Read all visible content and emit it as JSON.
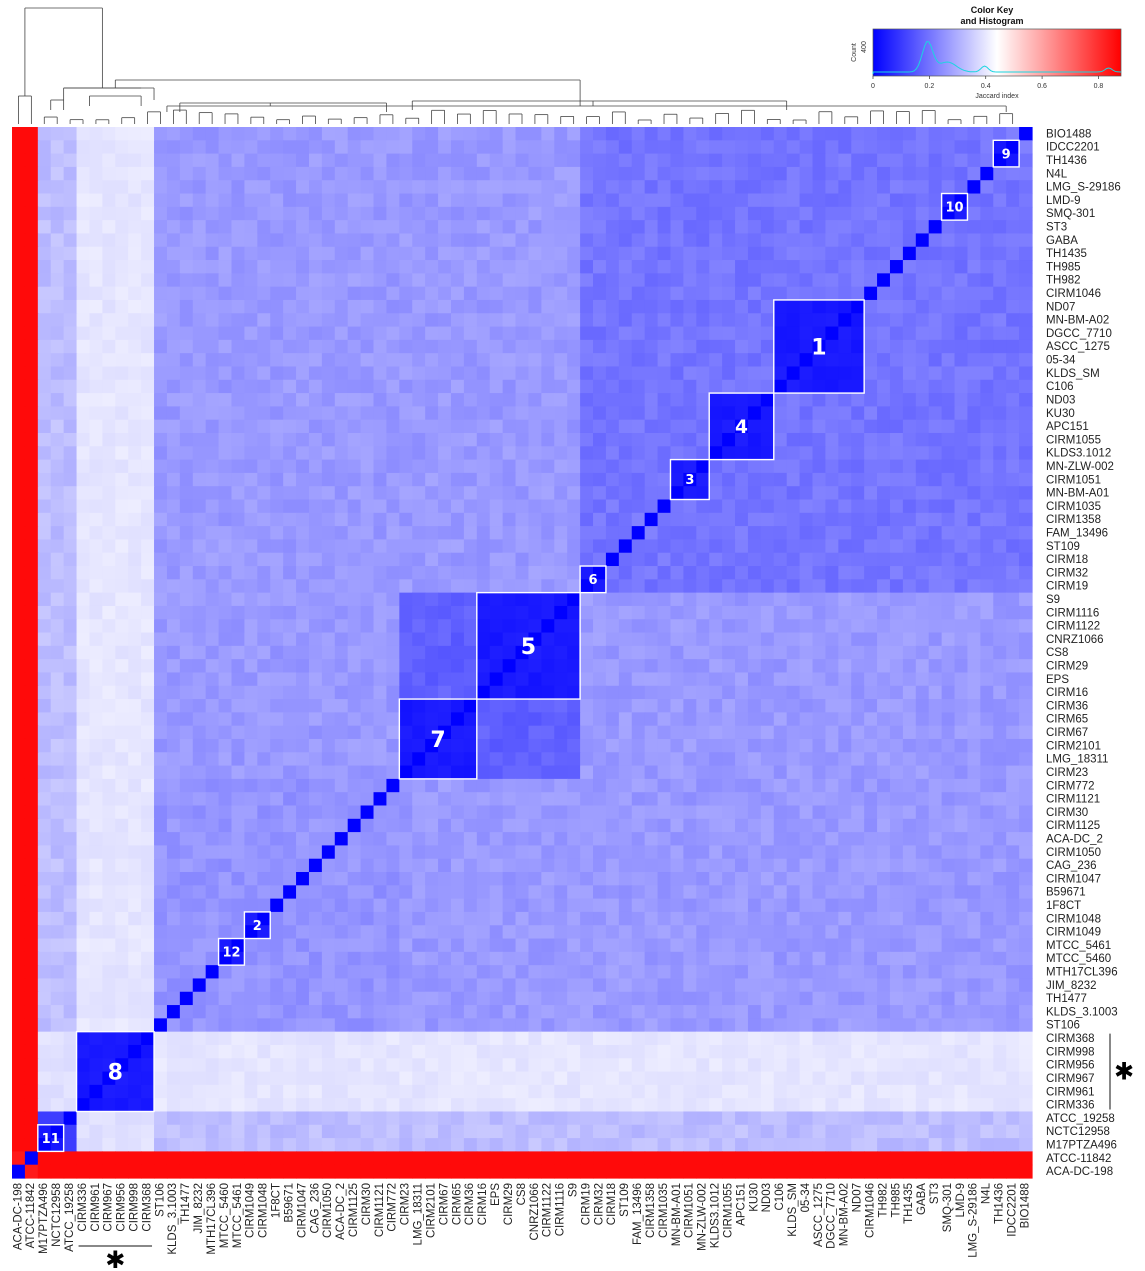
{
  "chart_data": {
    "type": "heatmap",
    "metric": "Jaccard index",
    "color_key": {
      "title": "Color Key\nand Histogram",
      "xlabel": "Jaccard index",
      "ylabel": "Count",
      "ticks": [
        "0",
        "0.2",
        "0.4",
        "0.6",
        "0.8"
      ],
      "ytick": "400",
      "color_low": "#0000ff",
      "color_mid": "#ffffff",
      "color_high": "#ff0000"
    },
    "row_labels": [
      "BIO1488",
      "IDCC2201",
      "TH1436",
      "N4L",
      "LMG_S-29186",
      "LMD-9",
      "SMQ-301",
      "ST3",
      "GABA",
      "TH1435",
      "TH985",
      "TH982",
      "CIRM1046",
      "ND07",
      "MN-BM-A02",
      "DGCC_7710",
      "ASCC_1275",
      "05-34",
      "KLDS_SM",
      "C106",
      "ND03",
      "KU30",
      "APC151",
      "CIRM1055",
      "KLDS3.1012",
      "MN-ZLW-002",
      "CIRM1051",
      "MN-BM-A01",
      "CIRM1035",
      "CIRM1358",
      "FAM_13496",
      "ST109",
      "CIRM18",
      "CIRM32",
      "CIRM19",
      "S9",
      "CIRM1116",
      "CIRM1122",
      "CNRZ1066",
      "CS8",
      "CIRM29",
      "EPS",
      "CIRM16",
      "CIRM36",
      "CIRM65",
      "CIRM67",
      "CIRM2101",
      "LMG_18311",
      "CIRM23",
      "CIRM772",
      "CIRM1121",
      "CIRM30",
      "CIRM1125",
      "ACA-DC_2",
      "CIRM1050",
      "CAG_236",
      "CIRM1047",
      "B59671",
      "1F8CT",
      "CIRM1048",
      "CIRM1049",
      "MTCC_5461",
      "MTCC_5460",
      "MTH17CL396",
      "JIM_8232",
      "TH1477",
      "KLDS_3.1003",
      "ST106",
      "CIRM368",
      "CIRM998",
      "CIRM956",
      "CIRM967",
      "CIRM961",
      "CIRM336",
      "ATCC_19258",
      "NCTC12958",
      "M17PTZA496",
      "ATCC-11842",
      "ACA-DC-198"
    ],
    "col_labels": [
      "ACA-DC-198",
      "ATCC-11842",
      "M17PTZA496",
      "NCTC12958",
      "ATCC_19258",
      "CIRM336",
      "CIRM961",
      "CIRM967",
      "CIRM956",
      "CIRM998",
      "CIRM368",
      "ST106",
      "KLDS_3.1003",
      "TH1477",
      "JIM_8232",
      "MTH17CL396",
      "MTCC_5460",
      "MTCC_5461",
      "CIRM1049",
      "CIRM1048",
      "1F8CT",
      "B59671",
      "CIRM1047",
      "CAG_236",
      "CIRM1050",
      "ACA-DC_2",
      "CIRM1125",
      "CIRM30",
      "CIRM1121",
      "CIRM772",
      "CIRM23",
      "LMG_18311",
      "CIRM2101",
      "CIRM67",
      "CIRM65",
      "CIRM36",
      "CIRM16",
      "EPS",
      "CIRM29",
      "CS8",
      "CNRZ1066",
      "CIRM1122",
      "CIRM1116",
      "S9",
      "CIRM19",
      "CIRM32",
      "CIRM18",
      "ST109",
      "FAM_13496",
      "CIRM1358",
      "CIRM1035",
      "MN-BM-A01",
      "CIRM1051",
      "MN-ZLW-002",
      "KLDS3.1012",
      "CIRM1055",
      "APC151",
      "KU30",
      "ND03",
      "C106",
      "KLDS_SM",
      "05-34",
      "ASCC_1275",
      "DGCC_7710",
      "MN-BM-A02",
      "ND07",
      "CIRM1046",
      "TH982",
      "TH985",
      "TH1435",
      "GABA",
      "ST3",
      "SMQ-301",
      "LMD-9",
      "LMG_S-29186",
      "N4L",
      "TH1436",
      "IDCC2201",
      "BIO1488"
    ],
    "clusters": [
      {
        "label": "9",
        "index_range": [
          76,
          77
        ]
      },
      {
        "label": "10",
        "index_range": [
          72,
          73
        ]
      },
      {
        "label": "1",
        "index_range": [
          59,
          65
        ]
      },
      {
        "label": "4",
        "index_range": [
          54,
          58
        ]
      },
      {
        "label": "3",
        "index_range": [
          51,
          53
        ]
      },
      {
        "label": "6",
        "index_range": [
          44,
          45
        ]
      },
      {
        "label": "5",
        "index_range": [
          36,
          43
        ]
      },
      {
        "label": "7",
        "index_range": [
          30,
          35
        ]
      },
      {
        "label": "2",
        "index_range": [
          18,
          19
        ]
      },
      {
        "label": "12",
        "index_range": [
          16,
          17
        ]
      },
      {
        "label": "8",
        "index_range": [
          5,
          10
        ]
      },
      {
        "label": "11",
        "index_range": [
          2,
          3
        ]
      }
    ],
    "star_group": [
      "CIRM368",
      "CIRM998",
      "CIRM956",
      "CIRM967",
      "CIRM961",
      "CIRM336"
    ],
    "star_symbol": "✱"
  }
}
